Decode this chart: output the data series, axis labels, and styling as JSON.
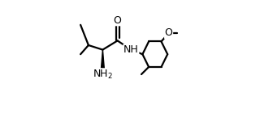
{
  "background": "#ffffff",
  "line_color": "#000000",
  "line_width": 1.6,
  "figsize": [
    3.2,
    1.4
  ],
  "dpi": 100,
  "xlim": [
    0,
    1.0
  ],
  "ylim": [
    0,
    1.0
  ],
  "font_size": 9.0
}
